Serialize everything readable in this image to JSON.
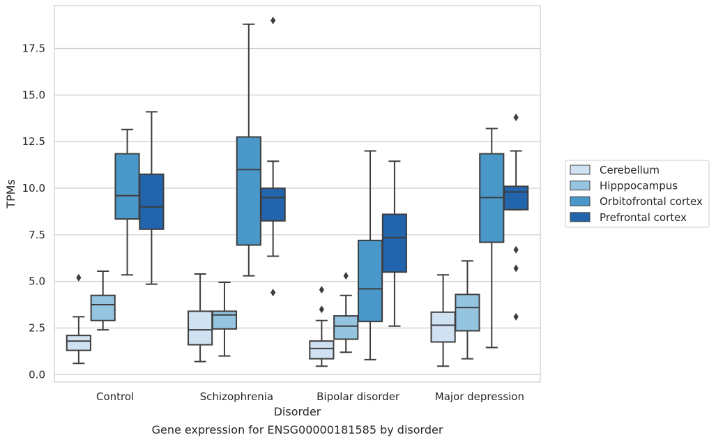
{
  "chart_data": {
    "type": "box",
    "caption": "Gene expression for ENSG00000181585 by disorder",
    "xlabel": "Disorder",
    "ylabel": "TPMs",
    "ylim": [
      -0.4,
      19.8
    ],
    "yticks": [
      "0.0",
      "2.5",
      "5.0",
      "7.5",
      "10.0",
      "12.5",
      "15.0",
      "17.5"
    ],
    "ytick_values": [
      0,
      2.5,
      5,
      7.5,
      10,
      12.5,
      15,
      17.5
    ],
    "grid": true,
    "legend_position": "right",
    "categories": [
      "Control",
      "Schizophrenia",
      "Bipolar disorder",
      "Major depression"
    ],
    "series": [
      {
        "name": "Cerebellum",
        "color": "#d0e1f2",
        "boxes": [
          {
            "whislo": 0.6,
            "q1": 1.3,
            "med": 1.8,
            "q3": 2.1,
            "whishi": 3.1,
            "fliers": [
              5.2
            ]
          },
          {
            "whislo": 0.7,
            "q1": 1.6,
            "med": 2.4,
            "q3": 3.4,
            "whishi": 5.4,
            "fliers": []
          },
          {
            "whislo": 0.45,
            "q1": 0.85,
            "med": 1.4,
            "q3": 1.8,
            "whishi": 2.9,
            "fliers": [
              3.5,
              4.55
            ]
          },
          {
            "whislo": 0.45,
            "q1": 1.75,
            "med": 2.65,
            "q3": 3.35,
            "whishi": 5.35,
            "fliers": []
          }
        ]
      },
      {
        "name": "Hipppocampus",
        "color": "#94c4df",
        "boxes": [
          {
            "whislo": 2.4,
            "q1": 2.9,
            "med": 3.75,
            "q3": 4.25,
            "whishi": 5.55,
            "fliers": []
          },
          {
            "whislo": 1.0,
            "q1": 2.45,
            "med": 3.2,
            "q3": 3.4,
            "whishi": 4.95,
            "fliers": []
          },
          {
            "whislo": 1.2,
            "q1": 1.9,
            "med": 2.6,
            "q3": 3.15,
            "whishi": 4.25,
            "fliers": [
              5.3
            ]
          },
          {
            "whislo": 0.85,
            "q1": 2.35,
            "med": 3.6,
            "q3": 4.3,
            "whishi": 6.1,
            "fliers": []
          }
        ]
      },
      {
        "name": "Orbitofrontal cortex",
        "color": "#4a98c9",
        "boxes": [
          {
            "whislo": 5.35,
            "q1": 8.35,
            "med": 9.6,
            "q3": 11.85,
            "whishi": 13.15,
            "fliers": []
          },
          {
            "whislo": 5.3,
            "q1": 6.95,
            "med": 11.0,
            "q3": 12.75,
            "whishi": 18.8,
            "fliers": []
          },
          {
            "whislo": 0.8,
            "q1": 2.85,
            "med": 4.6,
            "q3": 7.2,
            "whishi": 12.0,
            "fliers": []
          },
          {
            "whislo": 1.45,
            "q1": 7.1,
            "med": 9.5,
            "q3": 11.85,
            "whishi": 13.2,
            "fliers": []
          }
        ]
      },
      {
        "name": "Prefrontal cortex",
        "color": "#2265ac",
        "boxes": [
          {
            "whislo": 4.85,
            "q1": 7.8,
            "med": 9.0,
            "q3": 10.75,
            "whishi": 14.1,
            "fliers": []
          },
          {
            "whislo": 6.35,
            "q1": 8.25,
            "med": 9.5,
            "q3": 10.0,
            "whishi": 11.45,
            "fliers": [
              19.0,
              4.4
            ]
          },
          {
            "whislo": 2.6,
            "q1": 5.5,
            "med": 7.35,
            "q3": 8.6,
            "whishi": 11.45,
            "fliers": []
          },
          {
            "whislo": 8.85,
            "q1": 8.85,
            "med": 9.8,
            "q3": 10.1,
            "whishi": 12.0,
            "fliers": [
              13.8,
              6.7,
              5.7,
              3.1
            ]
          }
        ]
      }
    ]
  }
}
